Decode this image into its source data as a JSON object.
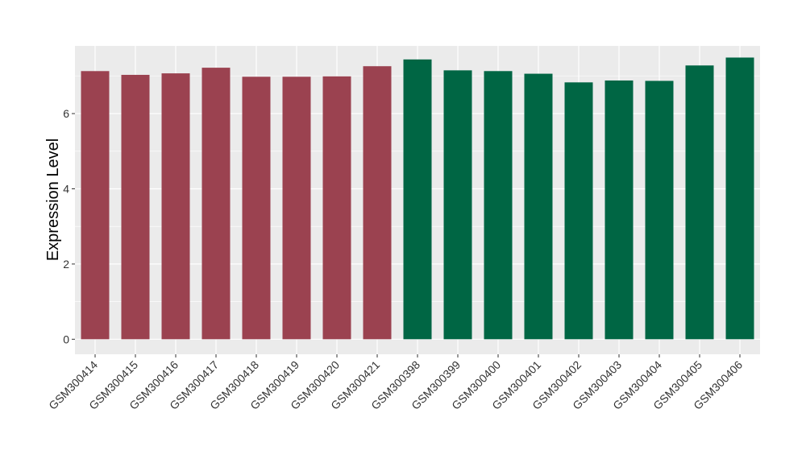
{
  "chart_data": {
    "type": "bar",
    "title": "",
    "xlabel": "",
    "ylabel": "Expression Level",
    "ylim": [
      -0.4,
      7.8
    ],
    "yticks": [
      0,
      2,
      4,
      6
    ],
    "grid": true,
    "legend": "none",
    "panel_background": "#EBEBEB",
    "grid_color": "#FFFFFF",
    "categories": [
      "GSM300414",
      "GSM300415",
      "GSM300416",
      "GSM300417",
      "GSM300418",
      "GSM300419",
      "GSM300420",
      "GSM300421",
      "GSM300398",
      "GSM300399",
      "GSM300400",
      "GSM300401",
      "GSM300402",
      "GSM300403",
      "GSM300404",
      "GSM300405",
      "GSM300406"
    ],
    "values": [
      7.13,
      7.03,
      7.07,
      7.22,
      6.98,
      6.98,
      6.99,
      7.26,
      7.44,
      7.15,
      7.13,
      7.06,
      6.83,
      6.88,
      6.87,
      7.28,
      7.49
    ],
    "bar_colors": [
      "#9B4250",
      "#9B4250",
      "#9B4250",
      "#9B4250",
      "#9B4250",
      "#9B4250",
      "#9B4250",
      "#9B4250",
      "#006644",
      "#006644",
      "#006644",
      "#006644",
      "#006644",
      "#006644",
      "#006644",
      "#006644",
      "#006644"
    ]
  }
}
